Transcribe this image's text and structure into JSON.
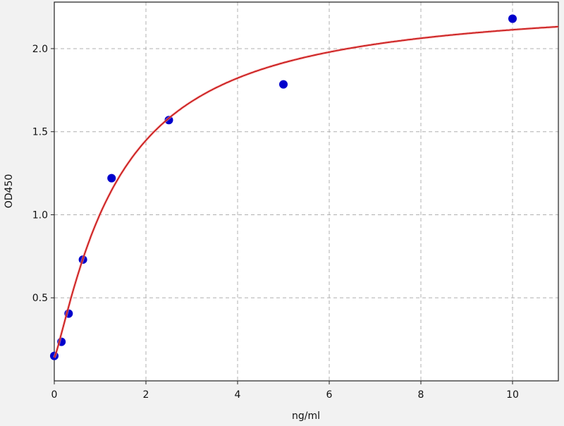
{
  "chart_data": {
    "type": "scatter",
    "title": "",
    "xlabel": "ng/ml",
    "ylabel": "OD450",
    "xlim": [
      0,
      11
    ],
    "ylim": [
      0,
      2.28
    ],
    "xticks": [
      0,
      2,
      4,
      6,
      8,
      10
    ],
    "yticks": [
      0.5,
      1.0,
      1.5,
      2.0
    ],
    "xtick_labels": [
      "0",
      "2",
      "4",
      "6",
      "8",
      "10"
    ],
    "ytick_labels": [
      "0.5",
      "1.0",
      "1.5",
      "2.0"
    ],
    "grid": true,
    "series": [
      {
        "type": "scatter",
        "color": "#0000cc",
        "x": [
          0,
          0.156,
          0.3125,
          0.625,
          1.25,
          2.5,
          5,
          10
        ],
        "y": [
          0.15,
          0.235,
          0.405,
          0.73,
          1.22,
          1.57,
          1.785,
          2.18
        ]
      },
      {
        "type": "line",
        "color": "#cc2222",
        "model": "four-parameter logistic fit",
        "params": {
          "a": 0.14,
          "b": 1.2,
          "c": 1.4,
          "d": 2.3
        }
      }
    ]
  }
}
